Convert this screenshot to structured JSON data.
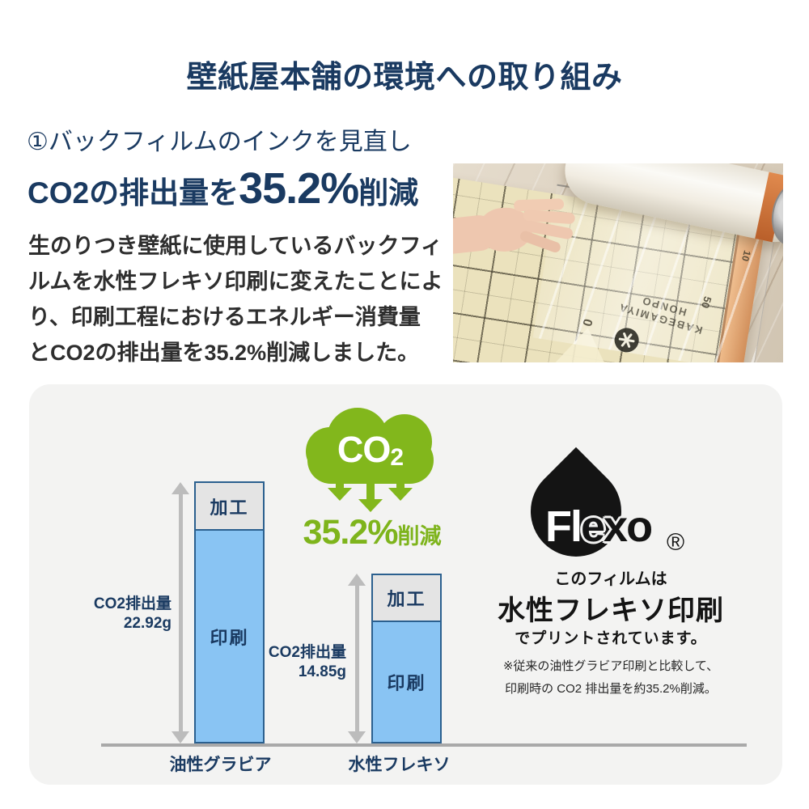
{
  "page": {
    "title": "壁紙屋本舗の環境への取り組み"
  },
  "colors": {
    "navy": "#1a3a61",
    "green": "#82b71c",
    "bar_blue": "#89c4f3",
    "bar_gray": "#e4e4e4",
    "bar_border": "#2b608f",
    "arrow_gray": "#bcbcbc",
    "card_bg": "#f3f3f2",
    "text_dark": "#2e2e2e",
    "black": "#141414"
  },
  "intro": {
    "section_heading": "①バックフィルムのインクを見直し",
    "stat_prefix": "CO2の排出量を",
    "stat_value": "35.2%",
    "stat_suffix": "削減",
    "body_lines": {
      "0": "生のりつき壁紙に使用しているバックフィ",
      "1": "ルムを水性フレキソ印刷に変えたことによ",
      "2": "り、印刷工程におけるエネルギー消費量",
      "3": "とCO2の排出量を35.2%削減しました。"
    }
  },
  "photo": {
    "film_text_line1": "KABEGAMIYA",
    "film_text_line2": "HONPO",
    "sheet_numbers": {
      "0": "10",
      "1": "50",
      "2": "0"
    }
  },
  "chart_data": {
    "type": "bar",
    "stacked": true,
    "unit": "g",
    "categories": {
      "0": "油性グラビア",
      "1": "水性フレキソ"
    },
    "series": [
      {
        "name": "加工",
        "values": [
          4.3,
          4.24
        ],
        "color": "#e4e4e4"
      },
      {
        "name": "印刷",
        "values": [
          18.62,
          10.61
        ],
        "color": "#89c4f3"
      }
    ],
    "totals": [
      22.92,
      14.85
    ],
    "value_label_title": "CO2排出量",
    "value_labels": {
      "0": "22.92g",
      "1": "14.85g"
    },
    "ylim": [
      0,
      24
    ],
    "grid": false,
    "annotation": "35.2%削減"
  },
  "badge": {
    "co2_main": "CO",
    "co2_sub": "2",
    "percent": "35.2%",
    "suffix": "削減"
  },
  "flexo": {
    "brand_fl": "Fl",
    "brand_exo": "exo",
    "registered": "®",
    "line1": "このフィルムは",
    "line2": "水性フレキソ印刷",
    "line3": "でプリントされています。",
    "note1": "※従来の油性グラビア印刷と比較して、",
    "note2": "印刷時の CO2 排出量を約35.2%削減。"
  }
}
